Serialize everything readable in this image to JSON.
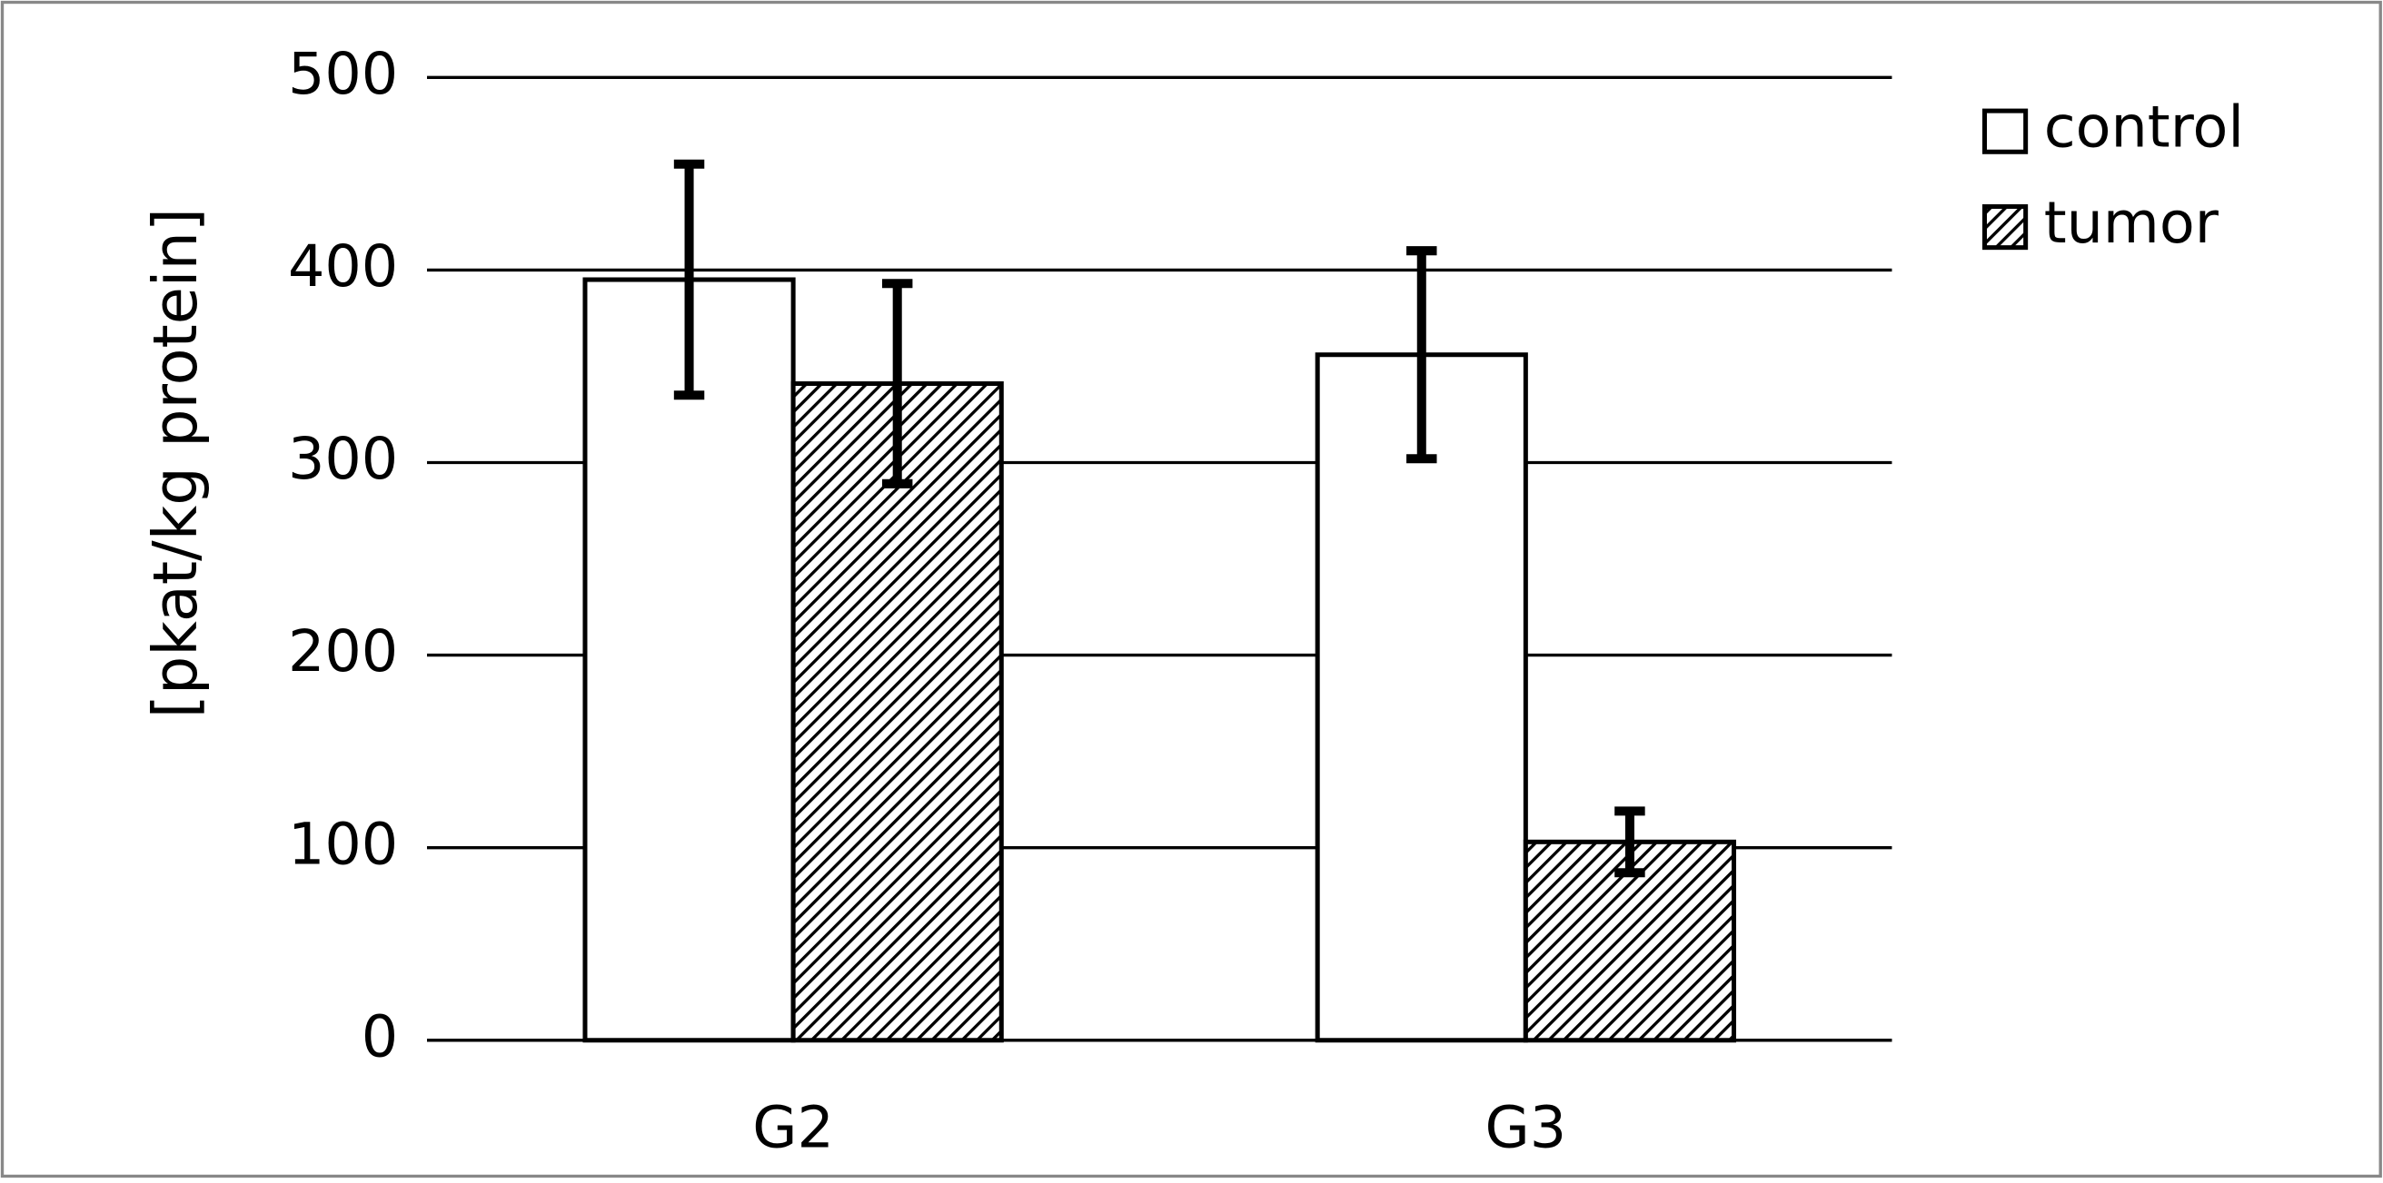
{
  "chart_data": {
    "type": "bar",
    "y_label": "[pkat/kg protein]",
    "categories": [
      "G2",
      "G3"
    ],
    "series": [
      {
        "name": "control",
        "color": "#ffffff",
        "pattern": "none",
        "values": [
          395,
          356
        ],
        "errors": [
          60,
          54
        ]
      },
      {
        "name": "tumor",
        "color": "#ffffff",
        "pattern": "hatch",
        "values": [
          341,
          103
        ],
        "errors": [
          52,
          16
        ]
      }
    ],
    "ylim": [
      0,
      500
    ],
    "yticks": [
      0,
      100,
      200,
      300,
      400,
      500
    ],
    "grid": true,
    "legend": "top-right"
  }
}
